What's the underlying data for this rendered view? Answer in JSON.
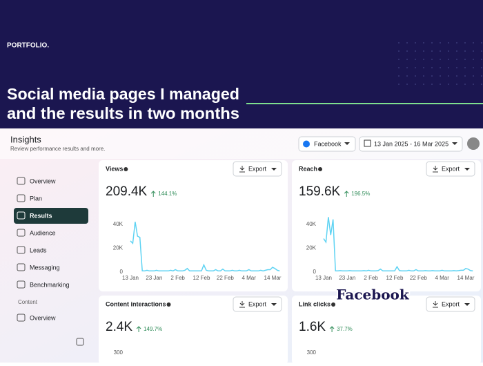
{
  "header": {
    "label": "PORTFOLIO.",
    "title_lines": [
      "Social media pages I managed",
      "and the results in two months"
    ]
  },
  "insights": {
    "title": "Insights",
    "subtitle": "Review performance results and more.",
    "platform": "Facebook",
    "date_range": "13 Jan 2025 - 16 Mar 2025"
  },
  "sidebar": {
    "items": [
      "Overview",
      "Plan",
      "Results",
      "Audience",
      "Leads",
      "Messaging",
      "Benchmarking"
    ],
    "section": "Content",
    "section_items": [
      "Overview"
    ]
  },
  "cards": [
    {
      "title": "Views",
      "export": "Export",
      "value": "209.4K",
      "change": "144.1%",
      "chart": {
        "type": "line",
        "color": "#5ed3f3",
        "values": [
          26,
          24,
          42,
          30,
          29,
          1,
          1,
          1.5,
          1,
          1,
          1,
          1.5,
          1,
          1,
          1,
          1,
          1,
          1.5,
          1,
          2,
          1,
          1,
          1,
          1.5,
          3,
          1,
          1,
          1,
          1,
          1,
          1,
          6,
          1.5,
          1,
          1,
          1,
          2,
          1,
          1,
          2.5,
          1,
          1,
          1,
          1.5,
          1,
          1,
          1.5,
          1,
          1,
          1,
          2,
          1,
          1,
          1,
          1,
          1.5,
          1,
          1.5,
          2,
          2,
          4,
          3,
          1.5,
          1
        ],
        "xlim": [
          0,
          63
        ],
        "ylim": [
          0,
          45
        ],
        "yticks": [
          {
            "value": 0,
            "label": "0"
          },
          {
            "value": 20,
            "label": "20K"
          },
          {
            "value": 40,
            "label": "40K"
          }
        ],
        "xticks": [
          {
            "value": 0,
            "label": "13 Jan"
          },
          {
            "value": 10,
            "label": "23 Jan"
          },
          {
            "value": 20,
            "label": "2 Feb"
          },
          {
            "value": 30,
            "label": "12 Feb"
          },
          {
            "value": 40,
            "label": "22 Feb"
          },
          {
            "value": 50,
            "label": "4 Mar"
          },
          {
            "value": 60,
            "label": "14 Mar"
          }
        ]
      }
    },
    {
      "title": "Reach",
      "export": "Export",
      "value": "159.6K",
      "change": "196.5%",
      "chart": {
        "type": "line",
        "color": "#5ed3f3",
        "values": [
          28,
          25,
          46,
          31,
          44,
          1,
          1,
          1.2,
          1,
          1,
          1,
          1.2,
          1,
          1,
          1,
          1,
          1,
          1.2,
          1,
          1.5,
          1,
          1,
          1,
          1.2,
          2.5,
          1,
          1,
          1,
          1,
          1,
          1,
          4.5,
          1.2,
          1,
          1,
          1,
          1.5,
          1,
          1,
          2,
          1,
          1,
          1,
          1.2,
          1,
          1,
          1.2,
          1,
          1,
          1,
          1.5,
          1,
          1,
          1,
          1,
          1.2,
          1,
          1.2,
          1.5,
          1.5,
          3,
          2.5,
          1.2,
          1
        ],
        "xlim": [
          0,
          63
        ],
        "ylim": [
          0,
          45
        ],
        "yticks": [
          {
            "value": 0,
            "label": "0"
          },
          {
            "value": 20,
            "label": "20K"
          },
          {
            "value": 40,
            "label": "40K"
          }
        ],
        "xticks": [
          {
            "value": 0,
            "label": "13 Jan"
          },
          {
            "value": 10,
            "label": "23 Jan"
          },
          {
            "value": 20,
            "label": "2 Feb"
          },
          {
            "value": 30,
            "label": "12 Feb"
          },
          {
            "value": 40,
            "label": "22 Feb"
          },
          {
            "value": 50,
            "label": "4 Mar"
          },
          {
            "value": 60,
            "label": "14 Mar"
          }
        ]
      }
    },
    {
      "title": "Content interactions",
      "export": "Export",
      "value": "2.4K",
      "change": "149.7%",
      "chart": {
        "yticks": [
          300
        ]
      }
    },
    {
      "title": "Link clicks",
      "export": "Export",
      "value": "1.6K",
      "change": "37.7%",
      "chart": {
        "yticks": [
          300
        ]
      }
    }
  ],
  "overlay": "Facebook"
}
